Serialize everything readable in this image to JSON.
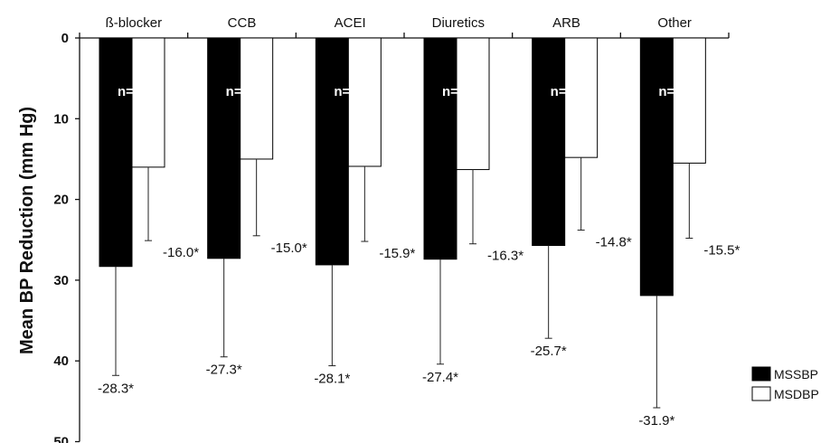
{
  "chart_data": {
    "type": "bar",
    "orientation": "vertical-inverted",
    "ylabel": "Mean BP Reduction (mm Hg)",
    "ylim": [
      0,
      50
    ],
    "yticks": [
      0,
      10,
      20,
      30,
      40,
      50
    ],
    "categories": [
      "ß-blocker",
      "CCB",
      "ACEI",
      "Diuretics",
      "ARB",
      "Other"
    ],
    "n_labels": [
      "n=903",
      "n=5413",
      "n=1728",
      "n=321",
      "n=2853",
      "n=82"
    ],
    "series": [
      {
        "name": "MSSBP",
        "color": "#000000",
        "values": [
          28.3,
          27.3,
          28.1,
          27.4,
          25.7,
          31.9
        ],
        "error_bar_ends": [
          41.8,
          39.5,
          40.6,
          40.4,
          37.2,
          45.8
        ],
        "labels": [
          "-28.3*",
          "-27.3*",
          "-28.1*",
          "-27.4*",
          "-25.7*",
          "-31.9*"
        ]
      },
      {
        "name": "MSDBP",
        "color": "#ffffff",
        "values": [
          16.0,
          15.0,
          15.9,
          16.3,
          14.8,
          15.5
        ],
        "error_bar_ends": [
          25.1,
          24.5,
          25.2,
          25.5,
          23.8,
          24.8
        ],
        "labels": [
          "-16.0*",
          "-15.0*",
          "-15.9*",
          "-16.3*",
          "-14.8*",
          "-15.5*"
        ]
      }
    ],
    "legend": "right",
    "grid": false
  }
}
